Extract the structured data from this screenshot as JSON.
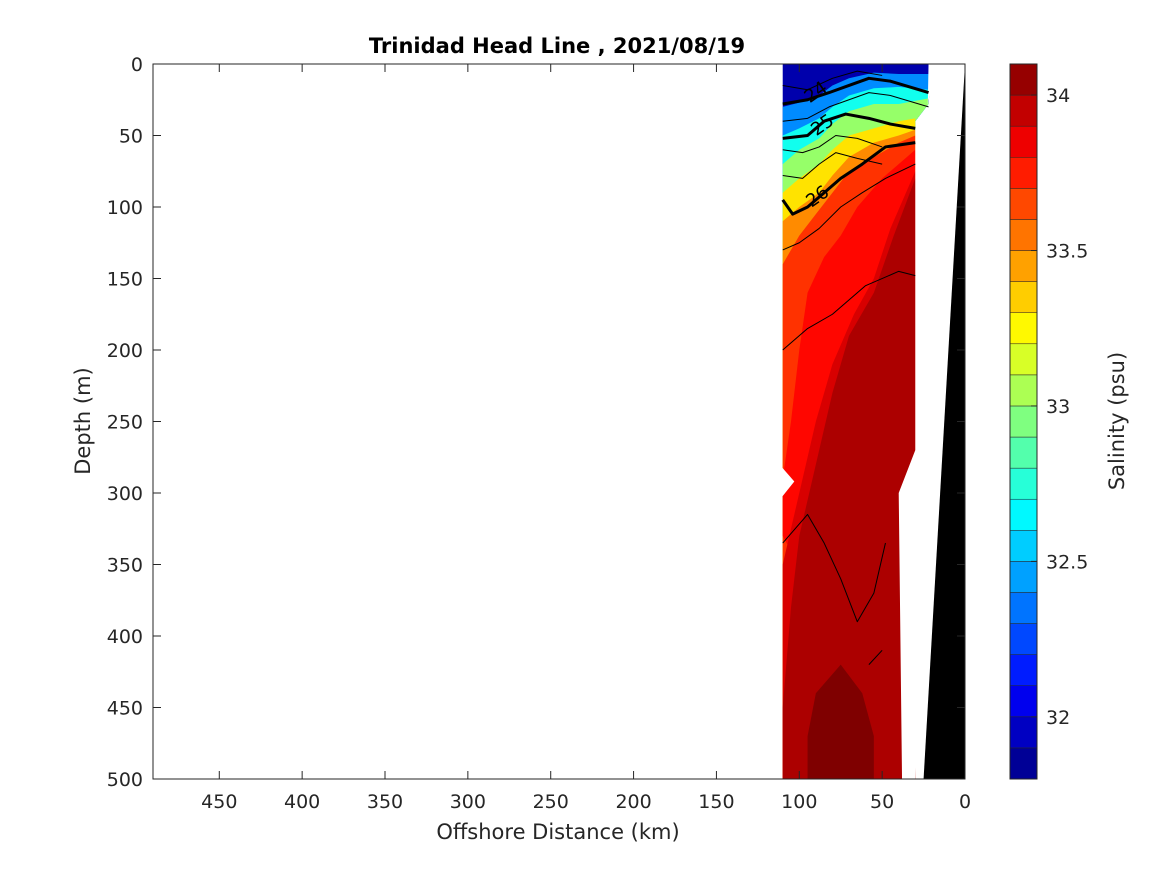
{
  "chart_data": {
    "type": "contour",
    "title": "Trinidad Head Line , 2021/08/19",
    "xlabel": "Offshore Distance (km)",
    "ylabel": "Depth (m)",
    "xlim": [
      490,
      0
    ],
    "ylim": [
      0,
      500
    ],
    "x_reversed": true,
    "y_reversed": true,
    "x_ticks": [
      450,
      400,
      350,
      300,
      250,
      200,
      150,
      100,
      50,
      0
    ],
    "y_ticks": [
      0,
      50,
      100,
      150,
      200,
      250,
      300,
      350,
      400,
      450,
      500
    ],
    "grid": false,
    "colorbar": {
      "label": "Salinity (psu)",
      "range": [
        31.8,
        34.1
      ],
      "step": 0.1,
      "ticks": [
        32,
        32.5,
        33,
        33.5,
        34
      ],
      "colormap": "jet"
    },
    "contour_labels": [
      {
        "text": "24",
        "x": 88,
        "depth": 23
      },
      {
        "text": "25",
        "x": 84,
        "depth": 46
      },
      {
        "text": "26",
        "x": 87,
        "depth": 96
      }
    ],
    "colors": {
      "bathymetry": "#000000",
      "axis": "#262626",
      "contour_line": "#000000"
    },
    "salinity_bands": [
      {
        "level": 34.0,
        "polygon": [
          [
            110,
            500
          ],
          [
            110,
            450
          ],
          [
            105,
            380
          ],
          [
            100,
            330
          ],
          [
            92,
            290
          ],
          [
            80,
            230
          ],
          [
            70,
            190
          ],
          [
            55,
            160
          ],
          [
            43,
            120
          ],
          [
            30,
            80
          ],
          [
            30,
            500
          ]
        ]
      },
      {
        "level": 33.9,
        "polygon": [
          [
            110,
            350
          ],
          [
            100,
            300
          ],
          [
            90,
            250
          ],
          [
            80,
            210
          ],
          [
            67,
            175
          ],
          [
            55,
            150
          ],
          [
            45,
            115
          ],
          [
            30,
            75
          ],
          [
            30,
            500
          ],
          [
            110,
            500
          ]
        ]
      },
      {
        "level": 33.8,
        "polygon": [
          [
            110,
            330
          ],
          [
            110,
            290
          ],
          [
            105,
            250
          ],
          [
            100,
            200
          ],
          [
            95,
            160
          ],
          [
            85,
            135
          ],
          [
            75,
            120
          ],
          [
            65,
            100
          ],
          [
            50,
            80
          ],
          [
            30,
            60
          ],
          [
            30,
            500
          ]
        ]
      },
      {
        "level": 33.7,
        "polygon": [
          [
            110,
            140
          ],
          [
            100,
            120
          ],
          [
            90,
            105
          ],
          [
            80,
            90
          ],
          [
            70,
            75
          ],
          [
            55,
            65
          ],
          [
            40,
            55
          ],
          [
            30,
            50
          ],
          [
            30,
            500
          ],
          [
            110,
            500
          ]
        ]
      },
      {
        "level": 33.5,
        "polygon": [
          [
            110,
            110
          ],
          [
            100,
            100
          ],
          [
            88,
            90
          ],
          [
            80,
            78
          ],
          [
            70,
            65
          ],
          [
            55,
            55
          ],
          [
            40,
            50
          ],
          [
            30,
            46
          ],
          [
            30,
            500
          ],
          [
            110,
            500
          ]
        ]
      },
      {
        "level": 33.3,
        "polygon": [
          [
            110,
            90
          ],
          [
            100,
            80
          ],
          [
            88,
            70
          ],
          [
            80,
            60
          ],
          [
            70,
            50
          ],
          [
            55,
            45
          ],
          [
            40,
            40
          ],
          [
            30,
            38
          ],
          [
            30,
            500
          ],
          [
            110,
            500
          ]
        ]
      },
      {
        "level": 33.0,
        "polygon": [
          [
            110,
            70
          ],
          [
            100,
            60
          ],
          [
            88,
            52
          ],
          [
            80,
            42
          ],
          [
            70,
            33
          ],
          [
            55,
            28
          ],
          [
            40,
            28
          ],
          [
            22,
            24
          ],
          [
            22,
            28
          ],
          [
            30,
            40
          ],
          [
            30,
            500
          ],
          [
            110,
            500
          ]
        ]
      },
      {
        "level": 32.7,
        "polygon": [
          [
            110,
            50
          ],
          [
            100,
            45
          ],
          [
            88,
            38
          ],
          [
            80,
            30
          ],
          [
            70,
            22
          ],
          [
            55,
            17
          ],
          [
            40,
            16
          ],
          [
            22,
            18
          ],
          [
            22,
            28
          ],
          [
            30,
            40
          ],
          [
            30,
            500
          ],
          [
            110,
            500
          ]
        ]
      },
      {
        "level": 32.4,
        "polygon": [
          [
            110,
            30
          ],
          [
            100,
            27
          ],
          [
            88,
            22
          ],
          [
            80,
            15
          ],
          [
            70,
            10
          ],
          [
            55,
            6
          ],
          [
            40,
            7
          ],
          [
            22,
            7
          ],
          [
            22,
            28
          ],
          [
            30,
            40
          ],
          [
            30,
            500
          ],
          [
            110,
            500
          ]
        ]
      }
    ],
    "bathymetry": [
      [
        0,
        0
      ],
      [
        25,
        500
      ],
      [
        0,
        500
      ]
    ],
    "missing_gap": [
      [
        38,
        500
      ],
      [
        30,
        500
      ],
      [
        22,
        0
      ],
      [
        18,
        0
      ],
      [
        25,
        45
      ],
      [
        30,
        45
      ],
      [
        30,
        270
      ],
      [
        40,
        300
      ],
      [
        38,
        500
      ]
    ]
  }
}
